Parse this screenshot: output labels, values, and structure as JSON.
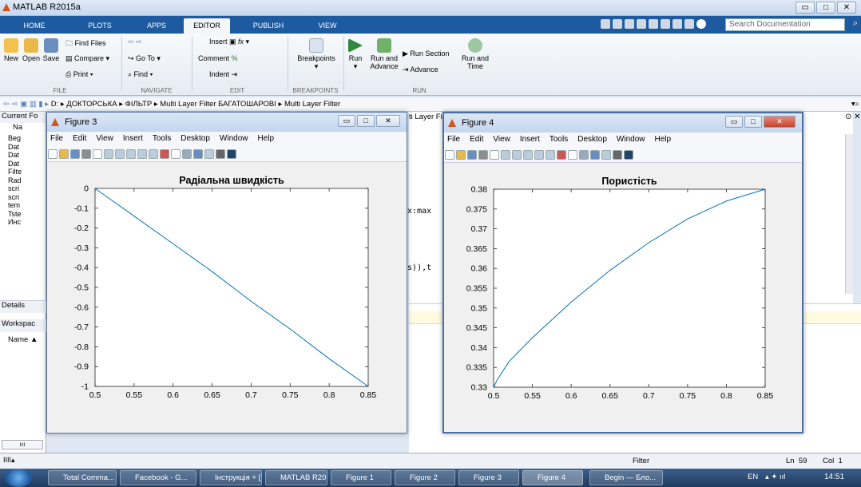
{
  "app": {
    "title": "MATLAB R2015a"
  },
  "tabs": [
    "HOME",
    "PLOTS",
    "APPS",
    "EDITOR",
    "PUBLISH",
    "VIEW"
  ],
  "search": {
    "placeholder": "Search Documentation"
  },
  "ribbon": {
    "buttons": {
      "new": "New",
      "open": "Open",
      "save": "Save",
      "find_files": "Find Files",
      "compare": "Compare",
      "print": "Print",
      "go_to": "Go To",
      "find": "Find",
      "insert": "Insert",
      "comment": "Comment",
      "indent": "Indent",
      "breakpoints": "Breakpoints",
      "run": "Run",
      "run_advance": "Run and Advance",
      "run_section": "Run Section",
      "advance": "Advance",
      "run_time": "Run and Time"
    },
    "groups": {
      "file": "FILE",
      "navigate": "NAVIGATE",
      "edit": "EDIT",
      "breakpoints": "BREAKPOINTS",
      "run": "RUN"
    }
  },
  "path": [
    "D:",
    "ДОКТОРСЬКА",
    "ФІЛЬТР",
    "Multi Layer Filter БАГАТОШАРОВІ",
    "Multi Layer Filter"
  ],
  "left_panel": {
    "current_folder": "Current Fo",
    "name_col": "Na",
    "items": [
      "Beg",
      "Dat",
      "Dat",
      "Dat",
      "Filte",
      "Rad",
      "scri",
      "scri",
      "tem",
      "Tste",
      "Инс"
    ],
    "details": "Details",
    "workspace": "Workspac",
    "name_header": "Name ▲"
  },
  "editor_snippets": [
    "/nx:max",
    "des)),t"
  ],
  "behind_title": "ti Layer Fil",
  "status": {
    "filter": "Filter",
    "ln": "Ln  59",
    "col": "Col  1"
  },
  "taskbar": {
    "items": [
      "Total Comma...",
      "Facebook - G...",
      "Інструкція + [...",
      "MATLAB R201...",
      "Figure 1",
      "Figure 2",
      "Figure 3",
      "Figure 4",
      "Begin — Бло..."
    ],
    "lang": "EN",
    "time": "14:51"
  },
  "figures": [
    {
      "title": "Figure 3",
      "menu": [
        "File",
        "Edit",
        "View",
        "Insert",
        "Tools",
        "Desktop",
        "Window",
        "Help"
      ],
      "chart_data": {
        "type": "line",
        "title": "Радіальна швидкість",
        "xlim": [
          0.5,
          0.85
        ],
        "ylim": [
          -1,
          0
        ],
        "xticks": [
          "0.5",
          "0.55",
          "0.6",
          "0.65",
          "0.7",
          "0.75",
          "0.8",
          "0.85"
        ],
        "yticks": [
          "0",
          "-0.1",
          "-0.2",
          "-0.3",
          "-0.4",
          "-0.5",
          "-0.6",
          "-0.7",
          "-0.8",
          "-0.9",
          "-1"
        ],
        "x": [
          0.5,
          0.55,
          0.6,
          0.65,
          0.7,
          0.75,
          0.8,
          0.85
        ],
        "y": [
          0,
          -0.14,
          -0.28,
          -0.42,
          -0.57,
          -0.71,
          -0.86,
          -1.0
        ],
        "color": "#0072bd"
      }
    },
    {
      "title": "Figure 4",
      "menu": [
        "File",
        "Edit",
        "View",
        "Insert",
        "Tools",
        "Desktop",
        "Window",
        "Help"
      ],
      "chart_data": {
        "type": "line",
        "title": "Пористість",
        "xlim": [
          0.5,
          0.85
        ],
        "ylim": [
          0.33,
          0.38
        ],
        "xticks": [
          "0.5",
          "0.55",
          "0.6",
          "0.65",
          "0.7",
          "0.75",
          "0.8",
          "0.85"
        ],
        "yticks": [
          "0.38",
          "0.375",
          "0.37",
          "0.365",
          "0.36",
          "0.355",
          "0.35",
          "0.345",
          "0.34",
          "0.335",
          "0.33"
        ],
        "x": [
          0.5,
          0.505,
          0.52,
          0.55,
          0.6,
          0.65,
          0.7,
          0.75,
          0.8,
          0.85
        ],
        "y": [
          0.33,
          0.332,
          0.3365,
          0.3425,
          0.3515,
          0.3595,
          0.3665,
          0.3725,
          0.377,
          0.38
        ],
        "color": "#0072bd"
      }
    }
  ]
}
